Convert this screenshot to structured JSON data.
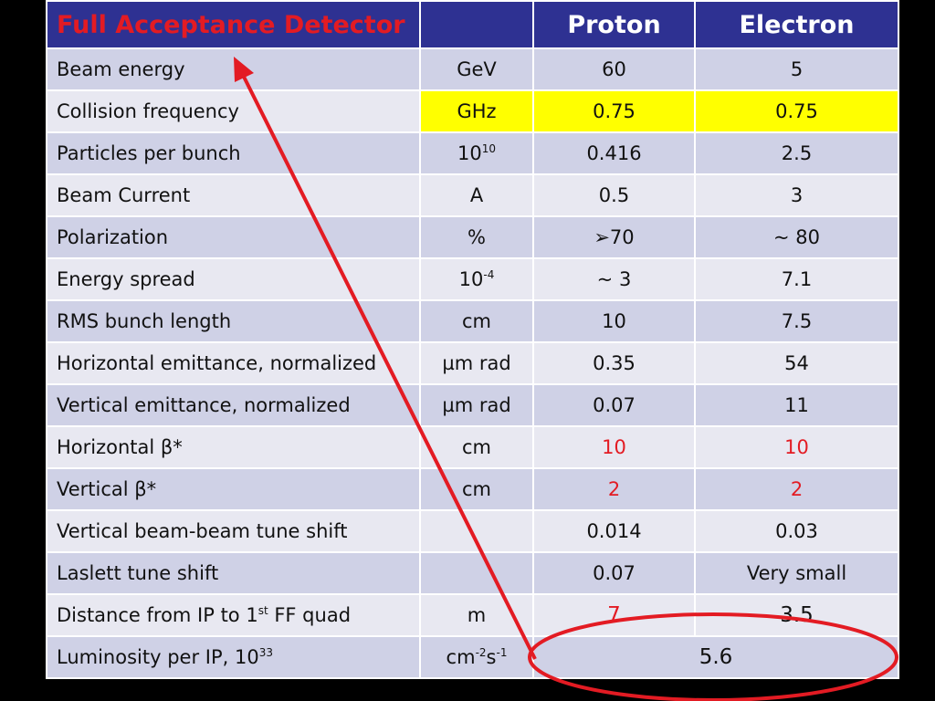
{
  "header": {
    "title": "Full Acceptance Detector",
    "unit": "",
    "col1": "Proton",
    "col2": "Electron"
  },
  "rows": [
    {
      "param": "Beam energy",
      "unit": "GeV",
      "proton": "60",
      "electron": "5"
    },
    {
      "param": "Collision frequency",
      "unit": "GHz",
      "proton": "0.75",
      "electron": "0.75",
      "highlight_color": "#ffff00"
    },
    {
      "param": "Particles per bunch",
      "unit_base": "10",
      "unit_sup": "10",
      "proton": "0.416",
      "electron": "2.5"
    },
    {
      "param": "Beam Current",
      "unit": "A",
      "proton": "0.5",
      "electron": "3"
    },
    {
      "param": "Polarization",
      "unit": "%",
      "proton": "➢70",
      "electron": "~ 80"
    },
    {
      "param": "Energy spread",
      "unit_base": "10",
      "unit_sup": "-4",
      "proton": "~ 3",
      "electron": "7.1"
    },
    {
      "param": "RMS bunch length",
      "unit": "cm",
      "proton": "10",
      "electron": "7.5"
    },
    {
      "param": "Horizontal emittance, normalized",
      "unit": "µm rad",
      "proton": "0.35",
      "electron": "54"
    },
    {
      "param": "Vertical emittance, normalized",
      "unit": "µm rad",
      "proton": "0.07",
      "electron": "11"
    },
    {
      "param": "Horizontal β*",
      "unit": "cm",
      "proton": "10",
      "electron": "10"
    },
    {
      "param": "Vertical β*",
      "unit": "cm",
      "proton": "2",
      "electron": "2"
    },
    {
      "param": "Vertical beam-beam tune shift",
      "unit": "",
      "proton": "0.014",
      "electron": "0.03"
    },
    {
      "param": "Laslett tune shift",
      "unit": "",
      "proton": "0.07",
      "electron": "Very small"
    },
    {
      "param_pre": "Distance from IP to 1",
      "param_sup": "st",
      "param_post": " FF quad",
      "unit": "m",
      "proton": "7",
      "electron": "3.5"
    },
    {
      "param_pre": "Luminosity per IP, 10",
      "param_sup": "33",
      "unit_a": "cm",
      "unit_a_sup": "-2",
      "unit_b": "s",
      "unit_b_sup": "-1",
      "value": "5.6"
    }
  ],
  "colors": {
    "header_bg": "#2e3192",
    "title_red": "#e31b23",
    "row_dark": "#cfd1e6",
    "row_light": "#e8e8f1",
    "annotation": "#e31b23"
  }
}
